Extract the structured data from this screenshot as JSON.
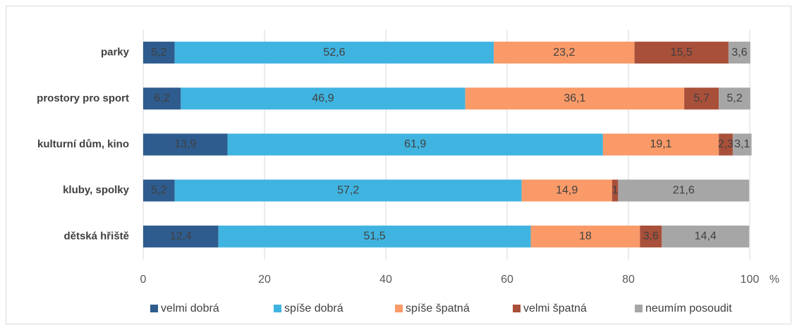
{
  "chart_data": {
    "type": "stacked-bar-horizontal",
    "categories": [
      "parky",
      "prostory pro sport",
      "kulturní dům, kino",
      "kluby, spolky",
      "dětská hřiště"
    ],
    "series": [
      {
        "name": "velmi dobrá",
        "color": "#2e5c8e",
        "values": [
          5.2,
          6.2,
          13.9,
          5.2,
          12.4
        ],
        "value_labels": [
          "5,2",
          "6,2",
          "13,9",
          "5,2",
          "12,4"
        ]
      },
      {
        "name": "spíše dobrá",
        "color": "#40b4e0",
        "values": [
          52.6,
          46.9,
          61.9,
          57.2,
          51.5
        ],
        "value_labels": [
          "52,6",
          "46,9",
          "61,9",
          "57,2",
          "51,5"
        ]
      },
      {
        "name": "spíše špatná",
        "color": "#f99a68",
        "values": [
          23.2,
          36.1,
          19.1,
          14.9,
          18
        ],
        "value_labels": [
          "23,2",
          "36,1",
          "19,1",
          "14,9",
          "18"
        ]
      },
      {
        "name": "velmi špatná",
        "color": "#a9503a",
        "values": [
          15.5,
          5.7,
          2.3,
          1,
          3.6
        ],
        "value_labels": [
          "15,5",
          "5,7",
          "2,3",
          "1",
          "3,6"
        ]
      },
      {
        "name": "neumím posoudit",
        "color": "#a6a6a6",
        "values": [
          3.6,
          5.2,
          3.1,
          21.6,
          14.4
        ],
        "value_labels": [
          "3,6",
          "5,2",
          "3,1",
          "21,6",
          "14,4"
        ]
      }
    ],
    "x_label": "%",
    "xlim": [
      0,
      100
    ],
    "xticks": [
      0,
      20,
      40,
      60,
      80,
      100
    ],
    "grid": true,
    "legend": "bottom"
  }
}
